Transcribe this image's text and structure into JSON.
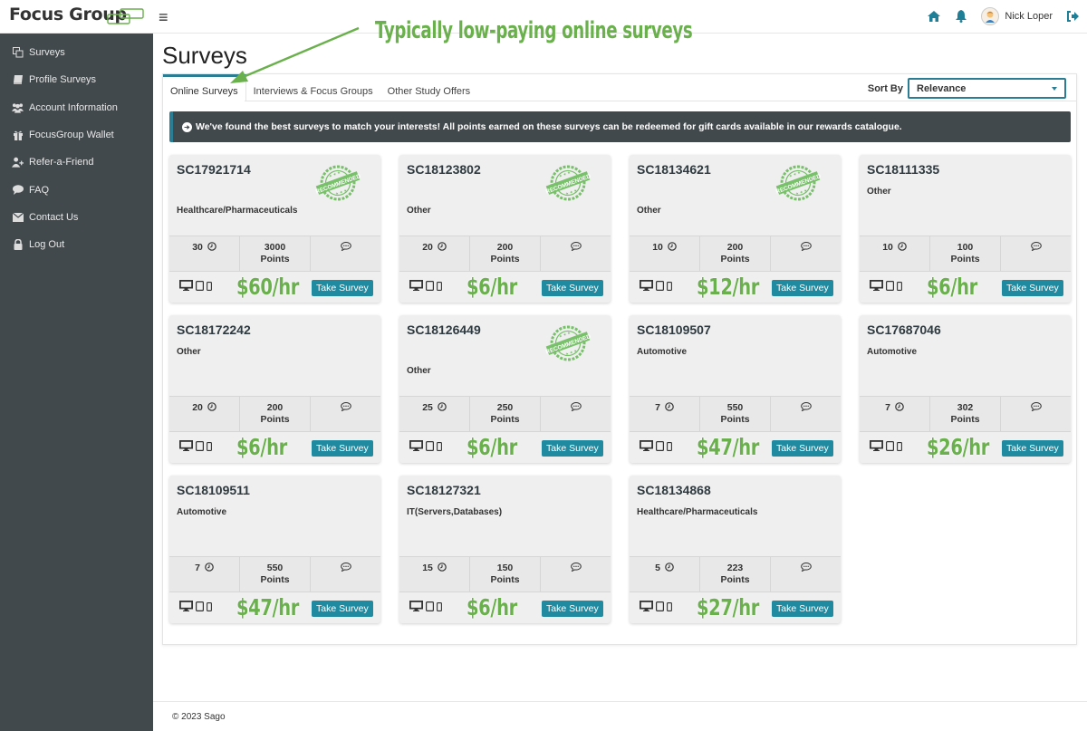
{
  "header": {
    "logo": "Focus Group",
    "user_name": "Nick Loper",
    "icons": [
      "menu-icon",
      "home-icon",
      "bell-icon",
      "avatar",
      "logout-icon"
    ]
  },
  "sidebar": {
    "items": [
      {
        "label": "Surveys",
        "icon": "copy-icon"
      },
      {
        "label": "Profile Surveys",
        "icon": "book-icon"
      },
      {
        "label": "Account Information",
        "icon": "users-icon"
      },
      {
        "label": "FocusGroup Wallet",
        "icon": "gift-icon"
      },
      {
        "label": "Refer-a-Friend",
        "icon": "user-plus-icon"
      },
      {
        "label": "FAQ",
        "icon": "comment-icon"
      },
      {
        "label": "Contact Us",
        "icon": "envelope-icon"
      },
      {
        "label": "Log Out",
        "icon": "lock-icon"
      }
    ]
  },
  "main": {
    "title": "Surveys",
    "tabs": [
      {
        "label": "Online Surveys",
        "active": true
      },
      {
        "label": "Interviews & Focus Groups",
        "active": false
      },
      {
        "label": "Other Study Offers",
        "active": false
      }
    ],
    "sort": {
      "label": "Sort By",
      "value": "Relevance"
    },
    "alert": "We've found the best surveys to match your interests! All points earned on these surveys can be redeemed for gift cards available in our rewards catalogue.",
    "points_label": "Points",
    "take_label": "Take Survey",
    "badge_text": "RECOMMENDED",
    "surveys": [
      {
        "id": "SC17921714",
        "category": "Healthcare/Pharmaceuticals",
        "minutes": "30",
        "points": "3000",
        "recommended": true,
        "rate": "$60/hr"
      },
      {
        "id": "SC18123802",
        "category": "Other",
        "minutes": "20",
        "points": "200",
        "recommended": true,
        "rate": "$6/hr"
      },
      {
        "id": "SC18134621",
        "category": "Other",
        "minutes": "10",
        "points": "200",
        "recommended": true,
        "rate": "$12/hr"
      },
      {
        "id": "SC18111335",
        "category": "Other",
        "minutes": "10",
        "points": "100",
        "recommended": false,
        "rate": "$6/hr"
      },
      {
        "id": "SC18172242",
        "category": "Other",
        "minutes": "20",
        "points": "200",
        "recommended": false,
        "rate": "$6/hr"
      },
      {
        "id": "SC18126449",
        "category": "Other",
        "minutes": "25",
        "points": "250",
        "recommended": true,
        "rate": "$6/hr"
      },
      {
        "id": "SC18109507",
        "category": "Automotive",
        "minutes": "7",
        "points": "550",
        "recommended": false,
        "rate": "$47/hr"
      },
      {
        "id": "SC17687046",
        "category": "Automotive",
        "minutes": "7",
        "points": "302",
        "recommended": false,
        "rate": "$26/hr"
      },
      {
        "id": "SC18109511",
        "category": "Automotive",
        "minutes": "7",
        "points": "550",
        "recommended": false,
        "rate": "$47/hr"
      },
      {
        "id": "SC18127321",
        "category": "IT(Servers,Databases)",
        "minutes": "15",
        "points": "150",
        "recommended": false,
        "rate": "$6/hr"
      },
      {
        "id": "SC18134868",
        "category": "Healthcare/Pharmaceuticals",
        "minutes": "5",
        "points": "223",
        "recommended": false,
        "rate": "$27/hr"
      }
    ]
  },
  "annotation": {
    "text": "Typically low-paying online surveys",
    "color": "#6ab04c"
  },
  "footer": {
    "copyright": "© 2023 Sago"
  },
  "colors": {
    "accent": "#2b7d94",
    "button": "#1f8aa0",
    "sidebar": "#42494c",
    "annotation_green": "#6ab04c"
  }
}
